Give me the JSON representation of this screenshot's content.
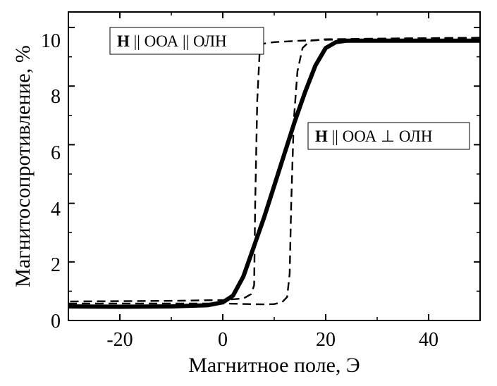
{
  "chart_data": {
    "type": "line",
    "xlabel": "Магнитное поле, Э",
    "ylabel": "Магнитосопротивление, %",
    "xlim": [
      -30,
      50
    ],
    "ylim": [
      0,
      11
    ],
    "x_ticks": [
      "-20",
      "0",
      "20",
      "40"
    ],
    "y_ticks": [
      "0",
      "2",
      "4",
      "6",
      "8",
      "10"
    ],
    "grid": false,
    "annotations": [
      {
        "bold": "H",
        "text": " || ООА || ОЛН"
      },
      {
        "bold": "H",
        "text": " || ООА ⊥ ОЛН"
      }
    ],
    "series": [
      {
        "style": "solid-thick",
        "x": [
          -30,
          -20,
          -10,
          -3,
          0,
          2,
          4,
          6,
          8,
          10,
          12,
          14,
          16,
          18,
          20,
          22,
          24,
          28,
          35,
          50
        ],
        "y": [
          0.48,
          0.47,
          0.48,
          0.52,
          0.62,
          0.85,
          1.5,
          2.5,
          3.5,
          4.6,
          5.7,
          6.8,
          7.8,
          8.7,
          9.3,
          9.5,
          9.55,
          9.55,
          9.55,
          9.55
        ]
      },
      {
        "style": "dashed-sweep-up",
        "x": [
          -30,
          -10,
          0,
          5,
          8,
          10,
          11.5,
          12.5,
          13,
          13.3,
          13.8,
          14.5,
          15.5,
          17,
          20,
          30,
          50
        ],
        "y": [
          0.58,
          0.58,
          0.58,
          0.56,
          0.55,
          0.56,
          0.62,
          0.8,
          1.6,
          4.0,
          6.8,
          8.5,
          9.3,
          9.55,
          9.6,
          9.62,
          9.65
        ]
      },
      {
        "style": "dashed-sweep-down",
        "x": [
          50,
          30,
          20,
          15,
          10,
          8,
          7.2,
          6.7,
          6.3,
          6.1,
          5.5,
          4,
          0,
          -10,
          -30
        ],
        "y": [
          9.65,
          9.62,
          9.58,
          9.55,
          9.5,
          9.45,
          9.3,
          7.5,
          4.0,
          1.2,
          0.9,
          0.75,
          0.7,
          0.67,
          0.65
        ]
      }
    ]
  }
}
